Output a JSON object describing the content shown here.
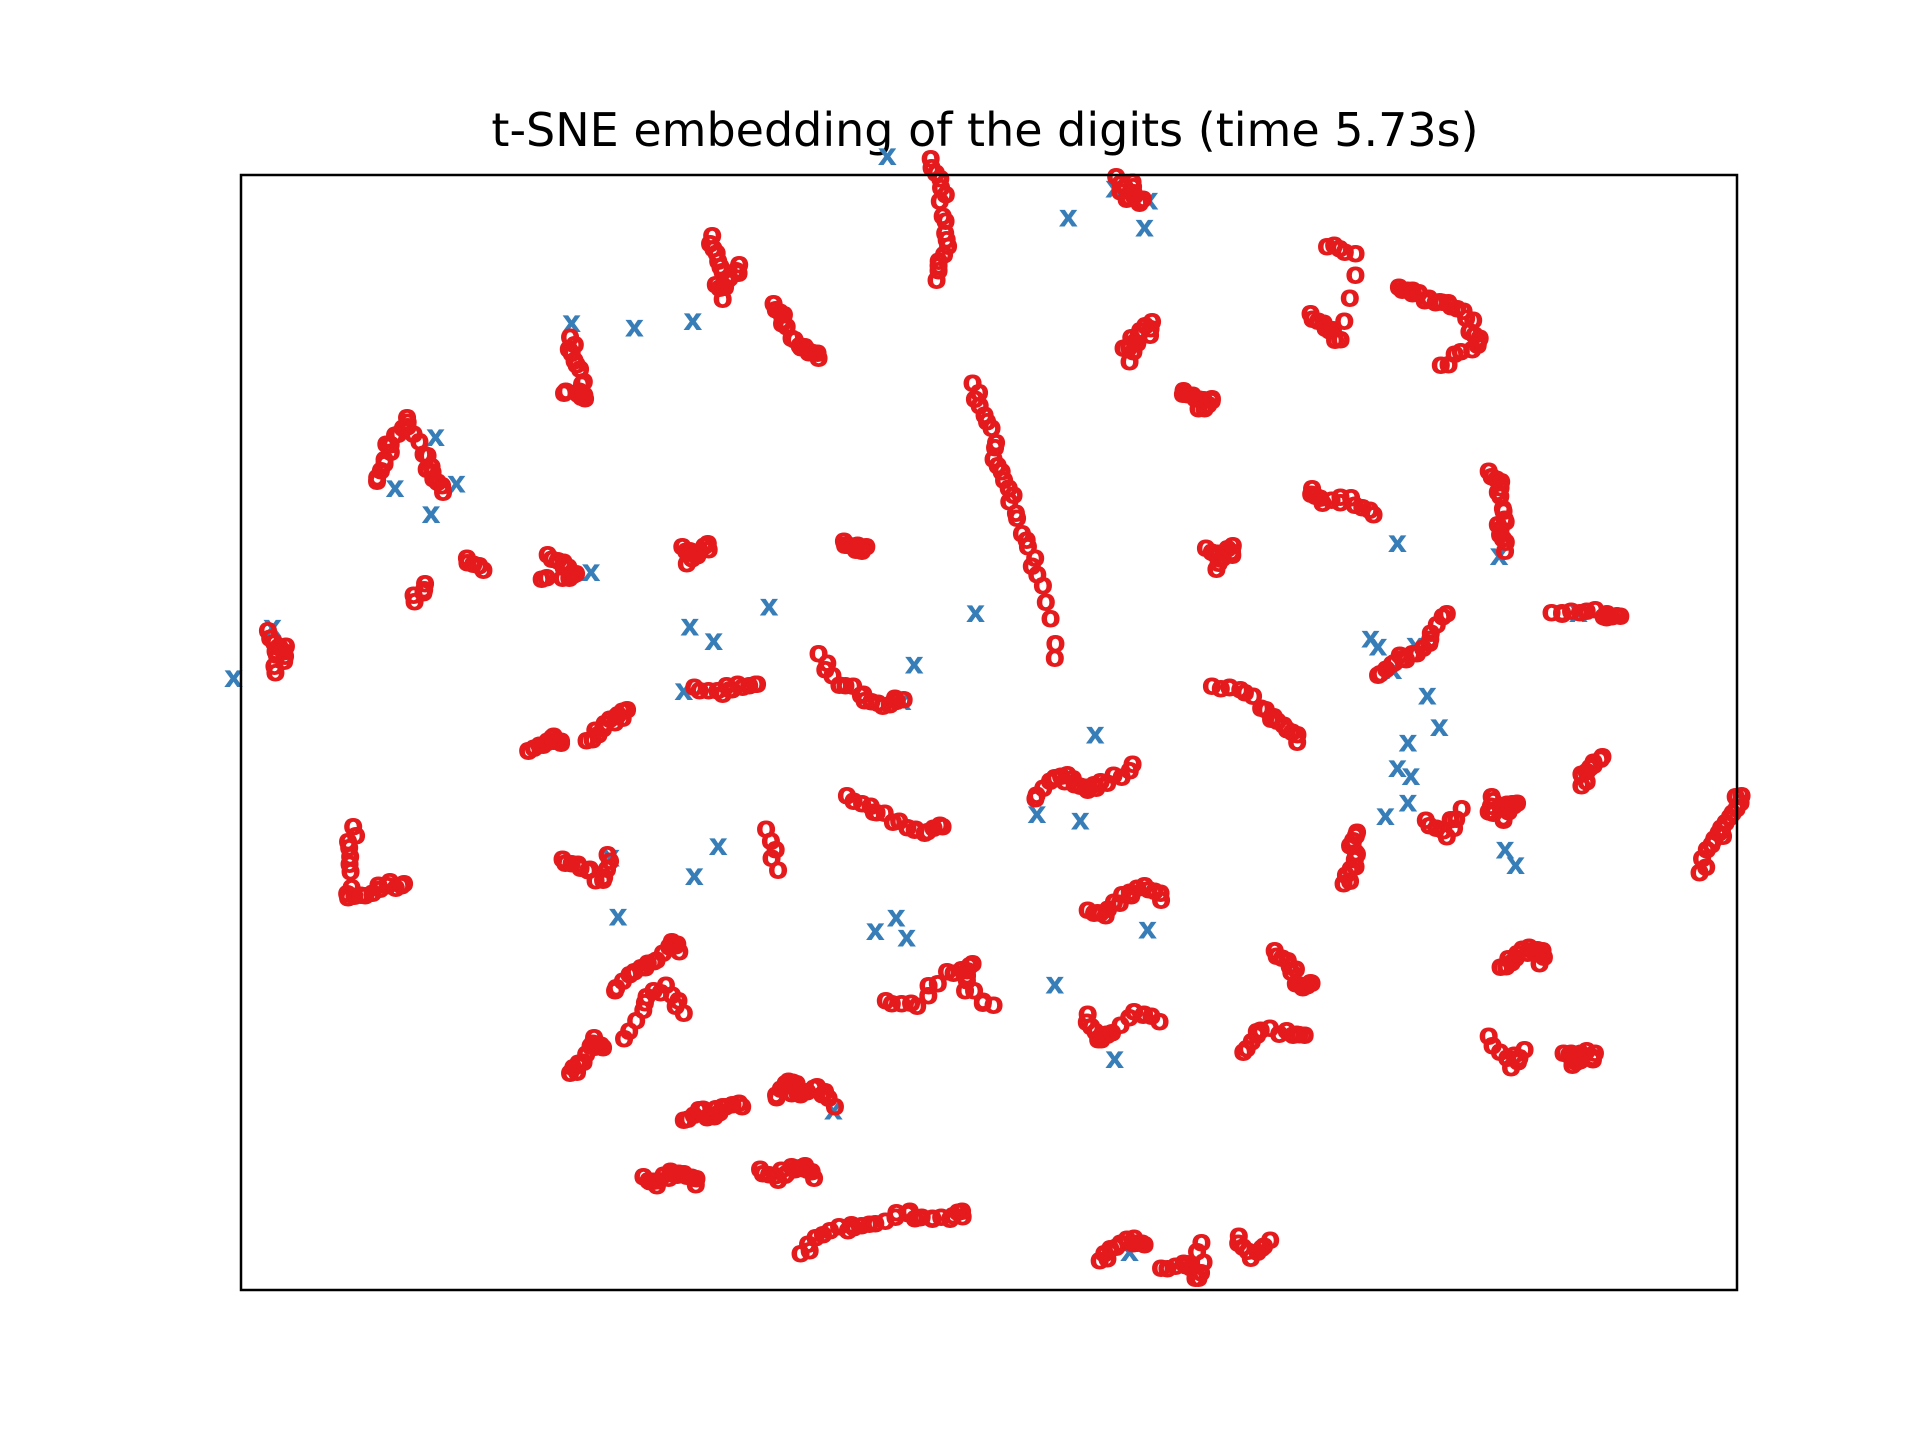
{
  "chart_data": {
    "type": "scatter",
    "title": "t-SNE embedding of the digits (time 5.73s)",
    "xlabel": "",
    "ylabel": "",
    "xlim": [
      0,
      100
    ],
    "ylim": [
      0,
      100
    ],
    "ticks_visible": false,
    "grid": false,
    "series": [
      {
        "marker_text": "o",
        "color": "#e41a1c",
        "clusters": [
          {
            "x": [
              46.1,
              46.8,
              47.1,
              47.0,
              46.5
            ],
            "y": [
              101.6,
              99.0,
              96.0,
              93.0,
              90.7
            ]
          },
          {
            "x": [
              58.5,
              59.2,
              60.2,
              59.6
            ],
            "y": [
              100.0,
              98.0,
              97.9,
              99.5
            ]
          },
          {
            "x": [
              31.5,
              31.9,
              32.0,
              33.3,
              32.2
            ],
            "y": [
              94.7,
              92.4,
              90.0,
              92.1,
              89.0
            ]
          },
          {
            "x": [
              35.6,
              36.2,
              37.0,
              37.9,
              38.6
            ],
            "y": [
              88.6,
              87.1,
              85.4,
              84.4,
              83.7
            ]
          },
          {
            "x": [
              22.0,
              22.3,
              22.8,
              23.0,
              21.6
            ],
            "y": [
              85.6,
              83.5,
              81.4,
              80.1,
              80.6
            ]
          },
          {
            "x": [
              71.5,
              72.5,
              73.5,
              74.5,
              72.6
            ],
            "y": [
              87.7,
              86.4,
              85.4,
              93.1,
              93.7
            ]
          },
          {
            "x": [
              59.0,
              60.0,
              60.9,
              59.4
            ],
            "y": [
              84.6,
              85.7,
              87.0,
              83.4
            ]
          },
          {
            "x": [
              63.0,
              63.8,
              64.4,
              64.9
            ],
            "y": [
              80.8,
              80.1,
              79.3,
              80.1
            ]
          },
          {
            "x": [
              77.4,
              78.3,
              79.4,
              80.7,
              81.9,
              82.8,
              82.3,
              80.2
            ],
            "y": [
              90.1,
              89.5,
              89.1,
              88.7,
              87.3,
              85.5,
              84.5,
              83.1
            ]
          },
          {
            "x": [
              48.9,
              49.7,
              50.4,
              51.0,
              51.8,
              52.6,
              53.6,
              54.4
            ],
            "y": [
              81.5,
              78.6,
              75.7,
              72.8,
              69.8,
              66.8,
              63.3,
              56.8
            ]
          },
          {
            "x": [
              9.1,
              9.6,
              10.3,
              11.1,
              12.2,
              12.8,
              13.5
            ],
            "y": [
              72.7,
              74.6,
              76.8,
              78.4,
              75.1,
              73.5,
              71.7
            ]
          },
          {
            "x": [
              12.3,
              11.6
            ],
            "y": [
              63.5,
              61.9
            ]
          },
          {
            "x": [
              15.1,
              16.2
            ],
            "y": [
              65.8,
              64.7
            ]
          },
          {
            "x": [
              20.5,
              21.6,
              22.4,
              20.1
            ],
            "y": [
              66.1,
              65.0,
              64.4,
              63.9
            ]
          },
          {
            "x": [
              29.5,
              30.5,
              31.2,
              29.8
            ],
            "y": [
              66.8,
              66.0,
              67.1,
              65.3
            ]
          },
          {
            "x": [
              40.3,
              41.1,
              41.8
            ],
            "y": [
              67.3,
              66.5,
              66.8
            ]
          },
          {
            "x": [
              64.5,
              65.6,
              66.3,
              65.2
            ],
            "y": [
              66.7,
              65.8,
              66.9,
              64.8
            ]
          },
          {
            "x": [
              71.6,
              72.3,
              74.2,
              75.7
            ],
            "y": [
              72.0,
              70.7,
              71.2,
              69.7
            ]
          },
          {
            "x": [
              83.4,
              84.2,
              84.4,
              84.2,
              84.5
            ],
            "y": [
              73.6,
              72.1,
              70.0,
              68.4,
              66.4
            ]
          },
          {
            "x": [
              87.6,
              89.5,
              91.3,
              92.2
            ],
            "y": [
              60.9,
              60.9,
              60.8,
              60.6
            ]
          },
          {
            "x": [
              76.0,
              77.1,
              78.3,
              79.5,
              80.6
            ],
            "y": [
              55.3,
              56.4,
              57.2,
              58.5,
              60.8
            ]
          },
          {
            "x": [
              64.9,
              66.8,
              68.5,
              69.7,
              70.6
            ],
            "y": [
              54.3,
              54.0,
              52.2,
              50.8,
              49.3
            ]
          },
          {
            "x": [
              53.1,
              54.4,
              55.6,
              56.6,
              57.9,
              59.6
            ],
            "y": [
              44.2,
              46.1,
              46.0,
              45.0,
              45.6,
              47.3
            ]
          },
          {
            "x": [
              40.5,
              42.3,
              44.0,
              45.7,
              46.9
            ],
            "y": [
              44.5,
              43.0,
              42.2,
              41.1,
              41.7
            ]
          },
          {
            "x": [
              38.6,
              40.0,
              41.6,
              42.9,
              44.3
            ],
            "y": [
              57.2,
              54.4,
              53.6,
              52.5,
              53.1
            ]
          },
          {
            "x": [
              30.3,
              32.2,
              33.2,
              34.5
            ],
            "y": [
              54.2,
              53.6,
              54.5,
              54.5
            ]
          },
          {
            "x": [
              23.1,
              24.2,
              25.1,
              25.8
            ],
            "y": [
              49.4,
              50.5,
              51.6,
              52.2
            ]
          },
          {
            "x": [
              19.2,
              20.2,
              20.9,
              21.4
            ],
            "y": [
              48.5,
              49.0,
              49.8,
              49.2
            ]
          },
          {
            "x": [
              1.8,
              2.4,
              3.0,
              2.3
            ],
            "y": [
              59.3,
              57.1,
              57.9,
              55.5
            ]
          },
          {
            "x": [
              7.5,
              7.3,
              7.1,
              8.3,
              9.8,
              10.9
            ],
            "y": [
              41.7,
              39.0,
              35.7,
              35.5,
              36.4,
              36.6
            ]
          },
          {
            "x": [
              21.5,
              22.7,
              24.2,
              24.5
            ],
            "y": [
              38.8,
              38.0,
              36.9,
              39.2
            ]
          },
          {
            "x": [
              35.1,
              35.9
            ],
            "y": [
              41.5,
              37.8
            ]
          },
          {
            "x": [
              25.0,
              26.3,
              27.6,
              28.8,
              29.3
            ],
            "y": [
              27.0,
              28.7,
              29.6,
              31.4,
              30.5
            ]
          },
          {
            "x": [
              25.6,
              27.0,
              28.4,
              29.6
            ],
            "y": [
              22.7,
              25.9,
              27.5,
              25.0
            ]
          },
          {
            "x": [
              22.0,
              22.9,
              23.6,
              24.2
            ],
            "y": [
              19.6,
              20.6,
              22.8,
              21.9
            ]
          },
          {
            "x": [
              43.1,
              45.2,
              47.2,
              48.9,
              48.4,
              50.3
            ],
            "y": [
              26.1,
              25.6,
              28.7,
              29.4,
              27.0,
              25.7
            ]
          },
          {
            "x": [
              56.6,
              57.8,
              58.9,
              60.4,
              61.5
            ],
            "y": [
              34.2,
              33.7,
              35.6,
              36.4,
              35.1
            ]
          },
          {
            "x": [
              56.6,
              57.3,
              57.9,
              59.7,
              61.4
            ],
            "y": [
              24.9,
              22.6,
              23.0,
              25.1,
              24.2
            ]
          },
          {
            "x": [
              67.0,
              67.9,
              69.9,
              71.1
            ],
            "y": [
              21.5,
              23.3,
              23.4,
              23.0
            ]
          },
          {
            "x": [
              73.7,
              74.5,
              74.3,
              74.6
            ],
            "y": [
              36.6,
              38.1,
              40.0,
              41.2
            ]
          },
          {
            "x": [
              69.1,
              70.1,
              70.8,
              71.5
            ],
            "y": [
              30.6,
              29.2,
              27.5,
              27.7
            ]
          },
          {
            "x": [
              84.2,
              85.2,
              86.1,
              87.0,
              86.8
            ],
            "y": [
              29.1,
              29.9,
              30.9,
              30.6,
              29.4
            ]
          },
          {
            "x": [
              84.4,
              85.3,
              83.5,
              83.6
            ],
            "y": [
              42.3,
              43.8,
              43.0,
              44.4
            ]
          },
          {
            "x": [
              89.6,
              91.0,
              89.6
            ],
            "y": [
              46.4,
              48.0,
              45.4
            ]
          },
          {
            "x": [
              97.5,
              98.3,
              99.0,
              99.7,
              100.3
            ],
            "y": [
              37.6,
              40.1,
              41.5,
              42.9,
              44.5
            ]
          },
          {
            "x": [
              83.4,
              84.9,
              85.8
            ],
            "y": [
              22.9,
              20.1,
              21.7
            ]
          },
          {
            "x": [
              88.4,
              89.4,
              90.5,
              89.0
            ],
            "y": [
              21.4,
              21.2,
              21.4,
              20.3
            ]
          },
          {
            "x": [
              66.7,
              67.5,
              68.8
            ],
            "y": [
              5.0,
              3.0,
              4.6
            ]
          },
          {
            "x": [
              61.5,
              63.2,
              64.0,
              64.2
            ],
            "y": [
              2.1,
              2.5,
              1.2,
              4.4
            ]
          },
          {
            "x": [
              37.4,
              38.9,
              40.8,
              42.4,
              44.6,
              45.5,
              47.4,
              48.2
            ],
            "y": [
              3.4,
              5.1,
              6.0,
              6.1,
              7.0,
              6.7,
              6.5,
              7.2
            ]
          },
          {
            "x": [
              34.7,
              35.9,
              36.8,
              37.7,
              38.3
            ],
            "y": [
              11.0,
              10.0,
              11.2,
              11.3,
              10.2
            ]
          },
          {
            "x": [
              26.9,
              27.8,
              28.7,
              29.6,
              30.4
            ],
            "y": [
              10.3,
              9.5,
              10.8,
              10.6,
              9.6
            ]
          },
          {
            "x": [
              35.8,
              36.6,
              37.2,
              38.5,
              39.7
            ],
            "y": [
              17.4,
              18.9,
              17.8,
              18.4,
              16.6
            ]
          },
          {
            "x": [
              29.6,
              30.7,
              31.3,
              32.2,
              33.5
            ],
            "y": [
              15.4,
              16.3,
              15.8,
              16.6,
              16.6
            ]
          },
          {
            "x": [
              57.4,
              58.5,
              59.7,
              60.4
            ],
            "y": [
              2.8,
              4.0,
              4.8,
              4.2
            ]
          },
          {
            "x": [
              79.2,
              80.6,
              81.6
            ],
            "y": [
              42.3,
              40.8,
              43.3
            ]
          }
        ]
      },
      {
        "marker_text": "x",
        "color": "#377eb8",
        "points": {
          "x": [
            43.2,
            58.4,
            60.7,
            55.3,
            60.4,
            26.3,
            30.2,
            22.1,
            13.0,
            10.3,
            14.4,
            12.7,
            2.1,
            -0.5,
            23.4,
            30.0,
            31.6,
            35.3,
            29.6,
            45.0,
            44.2,
            53.2,
            56.1,
            76.0,
            75.5,
            77.0,
            58.4,
            30.3,
            24.7,
            31.9,
            25.2,
            43.8,
            44.5,
            78.5,
            79.3,
            80.1,
            78.0,
            78.2,
            77.3,
            78.0,
            84.1,
            84.5,
            85.2,
            42.4,
            60.6,
            57.1,
            59.4,
            89.4,
            76.5,
            77.3,
            49.1,
            54.4,
            39.6
          ],
          "y": [
            101.8,
            98.9,
            97.8,
            96.3,
            95.4,
            86.4,
            87.0,
            86.8,
            76.6,
            72.0,
            72.4,
            69.7,
            59.5,
            55.0,
            64.5,
            59.6,
            58.3,
            61.4,
            53.8,
            56.2,
            52.9,
            42.8,
            42.2,
            57.8,
            58.5,
            55.7,
            20.8,
            37.2,
            38.9,
            39.9,
            33.6,
            33.5,
            31.7,
            57.9,
            53.4,
            50.6,
            49.2,
            46.2,
            46.9,
            43.8,
            65.9,
            39.6,
            38.2,
            32.3,
            32.4,
            49.9,
            3.5,
            60.8,
            42.6,
            67.1,
            60.8,
            27.5,
            16.2
          ]
        }
      }
    ]
  }
}
